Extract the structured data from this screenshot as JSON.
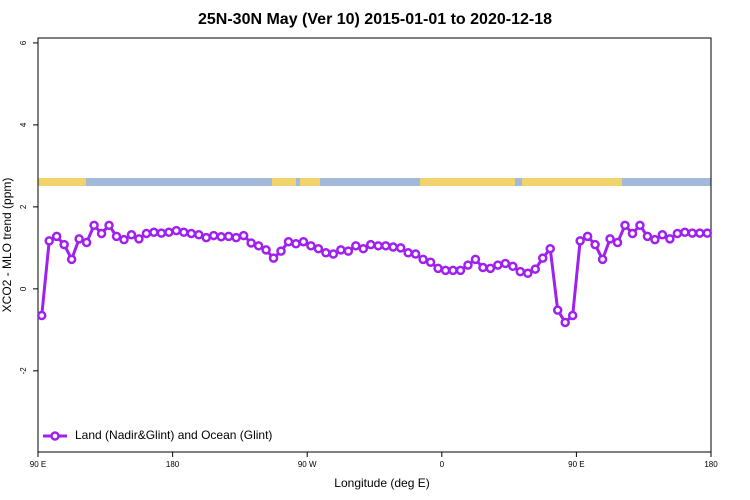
{
  "chart_data": {
    "type": "line",
    "title": "25N-30N May (Ver 10)   2015-01-01 to 2020-12-18",
    "x_label": "Longitude (deg E)",
    "y_label": "XCO2 - MLO trend (ppm)",
    "xlim": [
      90,
      540
    ],
    "ylim": [
      -3.98,
      6.12
    ],
    "xticks": [
      {
        "value": 90,
        "label": "90 E"
      },
      180,
      {
        "value": 270,
        "label": "90 W"
      },
      {
        "value": 360,
        "label": "0"
      },
      {
        "value": 450,
        "label": "90 E"
      },
      {
        "value": 540,
        "label": "180"
      }
    ],
    "yticks": [
      -2,
      0,
      2,
      4,
      6
    ],
    "legend": "bottom-left",
    "x": [
      92.5,
      97.5,
      102.5,
      107.5,
      112.5,
      117.5,
      122.5,
      127.5,
      132.5,
      137.5,
      142.5,
      147.5,
      152.5,
      157.5,
      162.5,
      167.5,
      172.5,
      177.5,
      182.5,
      187.5,
      192.5,
      197.5,
      202.5,
      207.5,
      212.5,
      217.5,
      222.5,
      227.5,
      232.5,
      237.5,
      242.5,
      247.5,
      252.5,
      257.5,
      262.5,
      267.5,
      272.5,
      277.5,
      282.5,
      287.5,
      292.5,
      297.5,
      302.5,
      307.5,
      312.5,
      317.5,
      322.5,
      327.5,
      332.5,
      337.5,
      342.5,
      347.5,
      352.5,
      357.5,
      362.5,
      367.5,
      372.5,
      377.5,
      382.5,
      387.5,
      392.5,
      397.5,
      402.5,
      407.5,
      412.5,
      417.5,
      422.5,
      427.5,
      432.5,
      437.5,
      442.5,
      447.5,
      452.5,
      457.5,
      462.5,
      467.5,
      472.5,
      477.5,
      482.5,
      487.5,
      492.5,
      497.5,
      502.5,
      507.5,
      512.5,
      517.5,
      522.5,
      527.5,
      532.5,
      537.5
    ],
    "series": [
      {
        "name": "Land (Nadir&Glint) and Ocean (Glint)",
        "color": "#a020f0",
        "values": [
          -0.65,
          1.17,
          1.28,
          1.08,
          0.72,
          1.22,
          1.13,
          1.55,
          1.35,
          1.55,
          1.28,
          1.2,
          1.32,
          1.22,
          1.35,
          1.38,
          1.36,
          1.38,
          1.42,
          1.38,
          1.35,
          1.32,
          1.25,
          1.3,
          1.27,
          1.28,
          1.25,
          1.3,
          1.12,
          1.05,
          0.95,
          0.75,
          0.92,
          1.15,
          1.1,
          1.15,
          1.05,
          0.98,
          0.88,
          0.85,
          0.95,
          0.92,
          1.05,
          0.98,
          1.08,
          1.05,
          1.05,
          1.02,
          1.0,
          0.88,
          0.85,
          0.72,
          0.65,
          0.5,
          0.45,
          0.45,
          0.45,
          0.58,
          0.72,
          0.52,
          0.5,
          0.58,
          0.62,
          0.55,
          0.42,
          0.38,
          0.48,
          0.75,
          0.98,
          -0.52,
          -0.82,
          -0.65,
          1.17,
          1.28,
          1.08,
          0.72,
          1.22,
          1.13,
          1.55,
          1.35,
          1.55,
          1.28,
          1.2,
          1.32,
          1.22,
          1.35,
          1.38,
          1.36,
          1.36,
          1.36
        ]
      }
    ]
  }
}
